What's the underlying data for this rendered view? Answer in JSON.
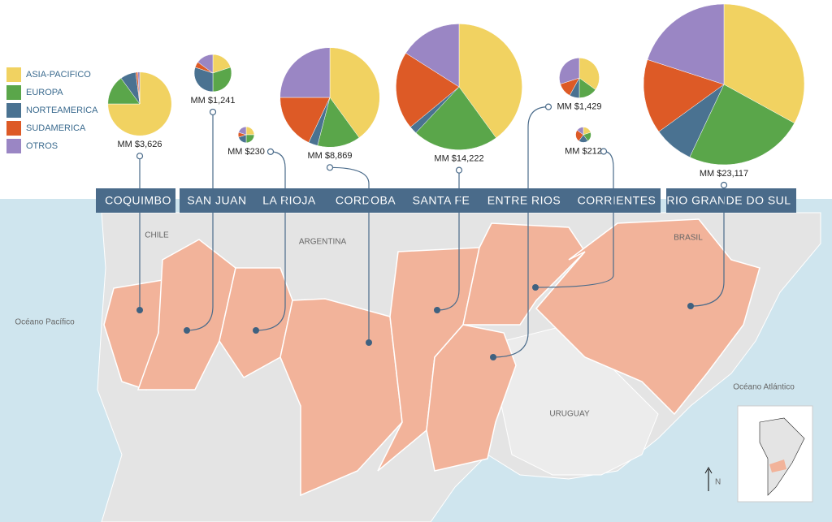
{
  "legend": [
    {
      "label": "ASIA-PACIFICO",
      "color": "#f1d261"
    },
    {
      "label": "EUROPA",
      "color": "#5aa64a"
    },
    {
      "label": "NORTEAMERICA",
      "color": "#4a7291"
    },
    {
      "label": "SUDAMERICA",
      "color": "#dd5a26"
    },
    {
      "label": "OTROS",
      "color": "#9a86c4"
    }
  ],
  "regions": [
    {
      "name": "COQUIMBO",
      "total": {
        "value": 3626,
        "label": "MM $3,626"
      },
      "shares": [
        75,
        15,
        8,
        1,
        1
      ]
    },
    {
      "name": "SAN JUAN",
      "total": {
        "value": 1241,
        "label": "MM $1,241"
      },
      "shares": [
        20,
        30,
        30,
        5,
        15
      ]
    },
    {
      "name": "LA RIOJA",
      "total": {
        "value": 230,
        "label": "MM $230"
      },
      "shares": [
        25,
        25,
        20,
        10,
        20
      ]
    },
    {
      "name": "CORDOBA",
      "total": {
        "value": 8869,
        "label": "MM $8,869"
      },
      "shares": [
        40,
        14,
        3,
        18,
        25
      ]
    },
    {
      "name": "SANTA FE",
      "total": {
        "value": 14222,
        "label": "MM $14,222"
      },
      "shares": [
        40,
        22,
        2,
        20,
        16
      ]
    },
    {
      "name": "ENTRE RIOS",
      "total": {
        "value": 1429,
        "label": "MM $1,429"
      },
      "shares": [
        35,
        15,
        8,
        12,
        30
      ]
    },
    {
      "name": "CORRIENTES",
      "total": {
        "value": 212,
        "label": "MM $212"
      },
      "shares": [
        20,
        20,
        20,
        25,
        15
      ]
    },
    {
      "name": "RIO GRANDE DO SUL",
      "total": {
        "value": 23117,
        "label": "MM $23,117"
      },
      "shares": [
        33,
        24,
        8,
        15,
        20
      ]
    }
  ],
  "map_labels": [
    "CHILE",
    "ARGENTINA",
    "URUGUAY",
    "BRASIL",
    "Océano Pacífico",
    "Océano Atlántico",
    "N"
  ]
}
